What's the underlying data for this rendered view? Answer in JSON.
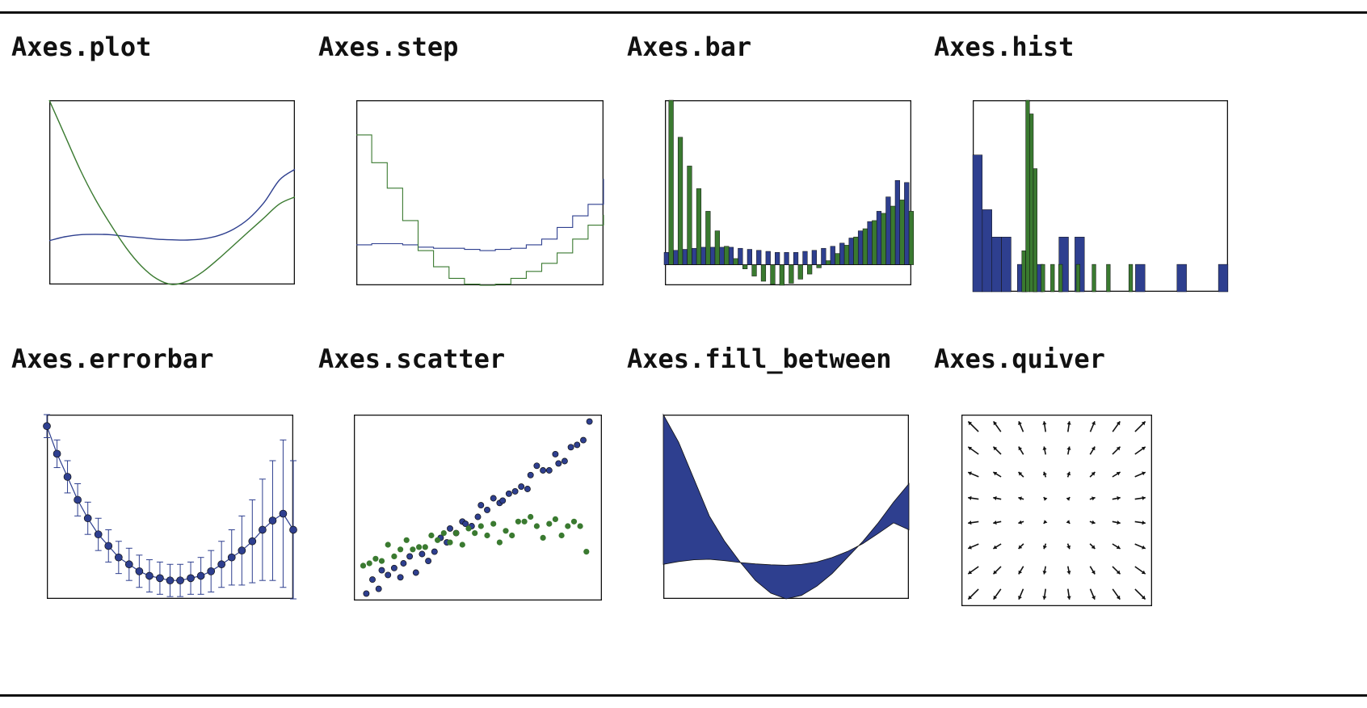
{
  "colors": {
    "blue": "#2e3f8f",
    "green": "#3a7a30",
    "frame": "#111111"
  },
  "panels": [
    {
      "title": "Axes.plot"
    },
    {
      "title": "Axes.step"
    },
    {
      "title": "Axes.bar"
    },
    {
      "title": "Axes.hist"
    },
    {
      "title": "Axes.errorbar"
    },
    {
      "title": "Axes.scatter"
    },
    {
      "title": "Axes.fill_between"
    },
    {
      "title": "Axes.quiver"
    }
  ],
  "chart_data": [
    {
      "type": "line",
      "xlim": [
        0,
        8
      ],
      "ylim": [
        0,
        8
      ],
      "series": [
        {
          "color": "blue",
          "x": [
            0,
            0.5,
            1,
            1.5,
            2,
            2.5,
            3,
            3.5,
            4,
            4.5,
            5,
            5.5,
            6,
            6.5,
            7,
            7.5,
            8
          ],
          "y": [
            1.9,
            2.07,
            2.16,
            2.18,
            2.16,
            2.09,
            2.03,
            1.97,
            1.94,
            1.93,
            1.98,
            2.12,
            2.4,
            2.86,
            3.57,
            4.54,
            5.0
          ]
        },
        {
          "color": "green",
          "x": [
            0,
            0.5,
            1,
            1.5,
            2,
            2.5,
            3,
            3.5,
            4,
            4.5,
            5,
            5.5,
            6,
            6.5,
            7,
            7.5,
            8
          ],
          "y": [
            8.0,
            6.5,
            5.0,
            3.7,
            2.6,
            1.6,
            0.8,
            0.25,
            0.0,
            0.15,
            0.55,
            1.1,
            1.7,
            2.3,
            2.9,
            3.5,
            3.8
          ]
        }
      ]
    },
    {
      "type": "line",
      "xlim": [
        0,
        8
      ],
      "ylim": [
        0,
        8
      ],
      "series": [
        {
          "color": "blue",
          "x": [
            0,
            0.5,
            1,
            1.5,
            2,
            2.5,
            3,
            3.5,
            4,
            4.5,
            5,
            5.5,
            6,
            6.5,
            7,
            7.5,
            8
          ],
          "y": [
            1.75,
            1.8,
            1.8,
            1.75,
            1.65,
            1.6,
            1.6,
            1.55,
            1.5,
            1.55,
            1.6,
            1.75,
            2.0,
            2.5,
            3.0,
            3.5,
            4.6
          ]
        },
        {
          "color": "green",
          "x": [
            0,
            0.5,
            1,
            1.5,
            2,
            2.5,
            3,
            3.5,
            4,
            4.5,
            5,
            5.5,
            6,
            6.5,
            7,
            7.5,
            8
          ],
          "y": [
            6.5,
            5.3,
            4.2,
            2.8,
            1.5,
            0.8,
            0.3,
            0.05,
            0.0,
            0.05,
            0.3,
            0.6,
            0.95,
            1.4,
            2.0,
            2.6,
            3.05
          ]
        }
      ]
    },
    {
      "type": "bar",
      "xlim": [
        0,
        8
      ],
      "ylim": [
        -1,
        8
      ],
      "series": [
        {
          "color": "blue",
          "x": [
            0.05,
            0.35,
            0.65,
            0.95,
            1.25,
            1.55,
            1.85,
            2.15,
            2.45,
            2.75,
            3.05,
            3.35,
            3.65,
            3.95,
            4.25,
            4.55,
            4.85,
            5.15,
            5.45,
            5.75,
            6.05,
            6.35,
            6.65,
            6.95,
            7.25,
            7.55,
            7.85
          ],
          "values": [
            0.6,
            0.7,
            0.75,
            0.8,
            0.85,
            0.85,
            0.85,
            0.85,
            0.8,
            0.75,
            0.7,
            0.65,
            0.6,
            0.6,
            0.6,
            0.65,
            0.7,
            0.8,
            0.9,
            1.05,
            1.3,
            1.65,
            2.1,
            2.6,
            3.3,
            4.1,
            4.0
          ]
        },
        {
          "color": "green",
          "x": [
            0.2,
            0.5,
            0.8,
            1.1,
            1.4,
            1.7,
            2.0,
            2.3,
            2.6,
            2.9,
            3.2,
            3.5,
            3.8,
            4.1,
            4.4,
            4.7,
            5.0,
            5.3,
            5.6,
            5.9,
            6.2,
            6.5,
            6.8,
            7.1,
            7.4,
            7.7,
            8.0
          ],
          "values": [
            8.0,
            6.2,
            4.8,
            3.7,
            2.6,
            1.65,
            0.9,
            0.3,
            -0.2,
            -0.55,
            -0.8,
            -0.95,
            -1.0,
            -0.9,
            -0.7,
            -0.45,
            -0.15,
            0.2,
            0.55,
            0.95,
            1.35,
            1.75,
            2.15,
            2.5,
            2.85,
            3.15,
            2.6
          ]
        }
      ]
    },
    {
      "type": "bar",
      "xlim": [
        0,
        8
      ],
      "ylim": [
        0,
        7
      ],
      "series": [
        {
          "color": "blue",
          "x": [
            0.15,
            0.45,
            0.75,
            1.05,
            1.55,
            2.05,
            2.85,
            3.35,
            5.25,
            6.55,
            7.85
          ],
          "values": [
            5.0,
            3.0,
            2.0,
            2.0,
            1.0,
            1.0,
            2.0,
            2.0,
            1.0,
            1.0,
            1.0
          ]
        },
        {
          "color": "green",
          "x": [
            1.6,
            1.72,
            1.84,
            1.96,
            2.2,
            2.5,
            2.75,
            3.3,
            3.8,
            4.25,
            4.95
          ],
          "values": [
            1.5,
            7.0,
            6.5,
            4.5,
            1.0,
            1.0,
            1.0,
            1.0,
            1.0,
            1.0,
            1.0
          ]
        }
      ]
    },
    {
      "type": "line",
      "xlim": [
        0,
        8
      ],
      "ylim": [
        0,
        8
      ],
      "series": [
        {
          "color": "blue",
          "x": [
            0,
            0.33,
            0.67,
            1,
            1.33,
            1.67,
            2,
            2.33,
            2.67,
            3,
            3.33,
            3.67,
            4,
            4.33,
            4.67,
            5,
            5.33,
            5.67,
            6,
            6.33,
            6.67,
            7,
            7.33,
            7.67,
            8
          ],
          "y": [
            7.5,
            6.3,
            5.3,
            4.3,
            3.5,
            2.8,
            2.3,
            1.8,
            1.5,
            1.2,
            1.0,
            0.9,
            0.8,
            0.8,
            0.9,
            1.0,
            1.2,
            1.5,
            1.8,
            2.1,
            2.5,
            3.0,
            3.4,
            3.7,
            3.0
          ],
          "yerr": [
            0.5,
            0.6,
            0.7,
            0.7,
            0.7,
            0.7,
            0.7,
            0.7,
            0.7,
            0.7,
            0.7,
            0.7,
            0.7,
            0.7,
            0.7,
            0.8,
            0.9,
            1.0,
            1.2,
            1.5,
            1.8,
            2.2,
            2.6,
            3.2,
            3.0
          ]
        }
      ]
    },
    {
      "type": "scatter",
      "xlim": [
        0,
        8
      ],
      "ylim": [
        0,
        8
      ],
      "series": [
        {
          "color": "blue",
          "x": [
            0.4,
            0.6,
            0.8,
            0.9,
            1.1,
            1.3,
            1.5,
            1.6,
            1.8,
            2.0,
            2.2,
            2.4,
            2.6,
            2.8,
            3.0,
            3.1,
            3.3,
            3.5,
            3.6,
            3.8,
            4.0,
            4.1,
            4.3,
            4.5,
            4.7,
            4.8,
            5.0,
            5.2,
            5.4,
            5.6,
            5.7,
            5.9,
            6.1,
            6.3,
            6.5,
            6.6,
            6.8,
            7.0,
            7.2,
            7.4,
            7.6
          ],
          "y": [
            0.3,
            0.9,
            0.5,
            1.3,
            1.1,
            1.4,
            1.0,
            1.6,
            1.9,
            1.2,
            2.0,
            1.7,
            2.1,
            2.7,
            2.5,
            3.1,
            2.9,
            3.4,
            3.3,
            3.2,
            3.6,
            4.1,
            3.9,
            4.4,
            4.2,
            4.3,
            4.6,
            4.7,
            4.9,
            4.8,
            5.4,
            5.8,
            5.6,
            5.6,
            6.3,
            5.9,
            6.0,
            6.6,
            6.7,
            6.9,
            7.7
          ]
        },
        {
          "color": "green",
          "x": [
            0.3,
            0.5,
            0.7,
            0.9,
            1.1,
            1.3,
            1.5,
            1.7,
            1.9,
            2.1,
            2.3,
            2.5,
            2.7,
            2.9,
            3.1,
            3.3,
            3.5,
            3.7,
            3.9,
            4.1,
            4.3,
            4.5,
            4.7,
            4.9,
            5.1,
            5.3,
            5.5,
            5.7,
            5.9,
            6.1,
            6.3,
            6.5,
            6.7,
            6.9,
            7.1,
            7.3,
            7.5
          ],
          "y": [
            1.5,
            1.6,
            1.8,
            1.7,
            2.4,
            1.9,
            2.2,
            2.6,
            2.2,
            2.3,
            2.3,
            2.8,
            2.6,
            2.9,
            2.5,
            2.9,
            2.4,
            3.1,
            2.9,
            3.2,
            2.8,
            3.3,
            2.5,
            3.0,
            2.8,
            3.4,
            3.4,
            3.6,
            3.2,
            2.7,
            3.3,
            3.5,
            2.8,
            3.2,
            3.4,
            3.2,
            2.1
          ]
        }
      ]
    },
    {
      "type": "area",
      "xlim": [
        0,
        8
      ],
      "ylim": [
        0,
        8
      ],
      "x": [
        0,
        0.5,
        1,
        1.5,
        2,
        2.5,
        3,
        3.5,
        4,
        4.5,
        5,
        5.5,
        6,
        6.5,
        7,
        7.5,
        8
      ],
      "y1": [
        8.0,
        6.8,
        5.2,
        3.6,
        2.5,
        1.6,
        0.8,
        0.25,
        0.0,
        0.15,
        0.55,
        1.1,
        1.8,
        2.5,
        3.3,
        4.2,
        5.0
      ],
      "y2": [
        1.5,
        1.62,
        1.7,
        1.72,
        1.66,
        1.58,
        1.52,
        1.48,
        1.46,
        1.5,
        1.6,
        1.8,
        2.06,
        2.4,
        2.84,
        3.3,
        3.0
      ]
    },
    {
      "type": "quiver",
      "xlim": [
        0,
        8
      ],
      "ylim": [
        0,
        8
      ],
      "grid": {
        "cols": 8,
        "rows": 8
      }
    }
  ]
}
